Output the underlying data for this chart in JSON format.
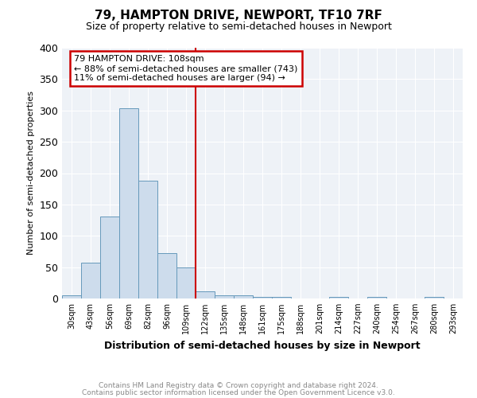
{
  "title": "79, HAMPTON DRIVE, NEWPORT, TF10 7RF",
  "subtitle": "Size of property relative to semi-detached houses in Newport",
  "xlabel": "Distribution of semi-detached houses by size in Newport",
  "ylabel": "Number of semi-detached properties",
  "categories": [
    "30sqm",
    "43sqm",
    "56sqm",
    "69sqm",
    "82sqm",
    "96sqm",
    "109sqm",
    "122sqm",
    "135sqm",
    "148sqm",
    "161sqm",
    "175sqm",
    "188sqm",
    "201sqm",
    "214sqm",
    "227sqm",
    "240sqm",
    "254sqm",
    "267sqm",
    "280sqm",
    "293sqm"
  ],
  "values": [
    5,
    57,
    131,
    304,
    188,
    73,
    50,
    12,
    5,
    5,
    3,
    2,
    0,
    0,
    3,
    0,
    3,
    0,
    0,
    2,
    0
  ],
  "bar_color": "#cddcec",
  "bar_edge_color": "#6699bb",
  "property_line_x": 6.5,
  "annotation_title": "79 HAMPTON DRIVE: 108sqm",
  "annotation_line1": "← 88% of semi-detached houses are smaller (743)",
  "annotation_line2": "11% of semi-detached houses are larger (94) →",
  "annotation_color": "#cc0000",
  "background_color": "#eef2f7",
  "grid_color": "#ffffff",
  "ylim": [
    0,
    400
  ],
  "footer1": "Contains HM Land Registry data © Crown copyright and database right 2024.",
  "footer2": "Contains public sector information licensed under the Open Government Licence v3.0."
}
